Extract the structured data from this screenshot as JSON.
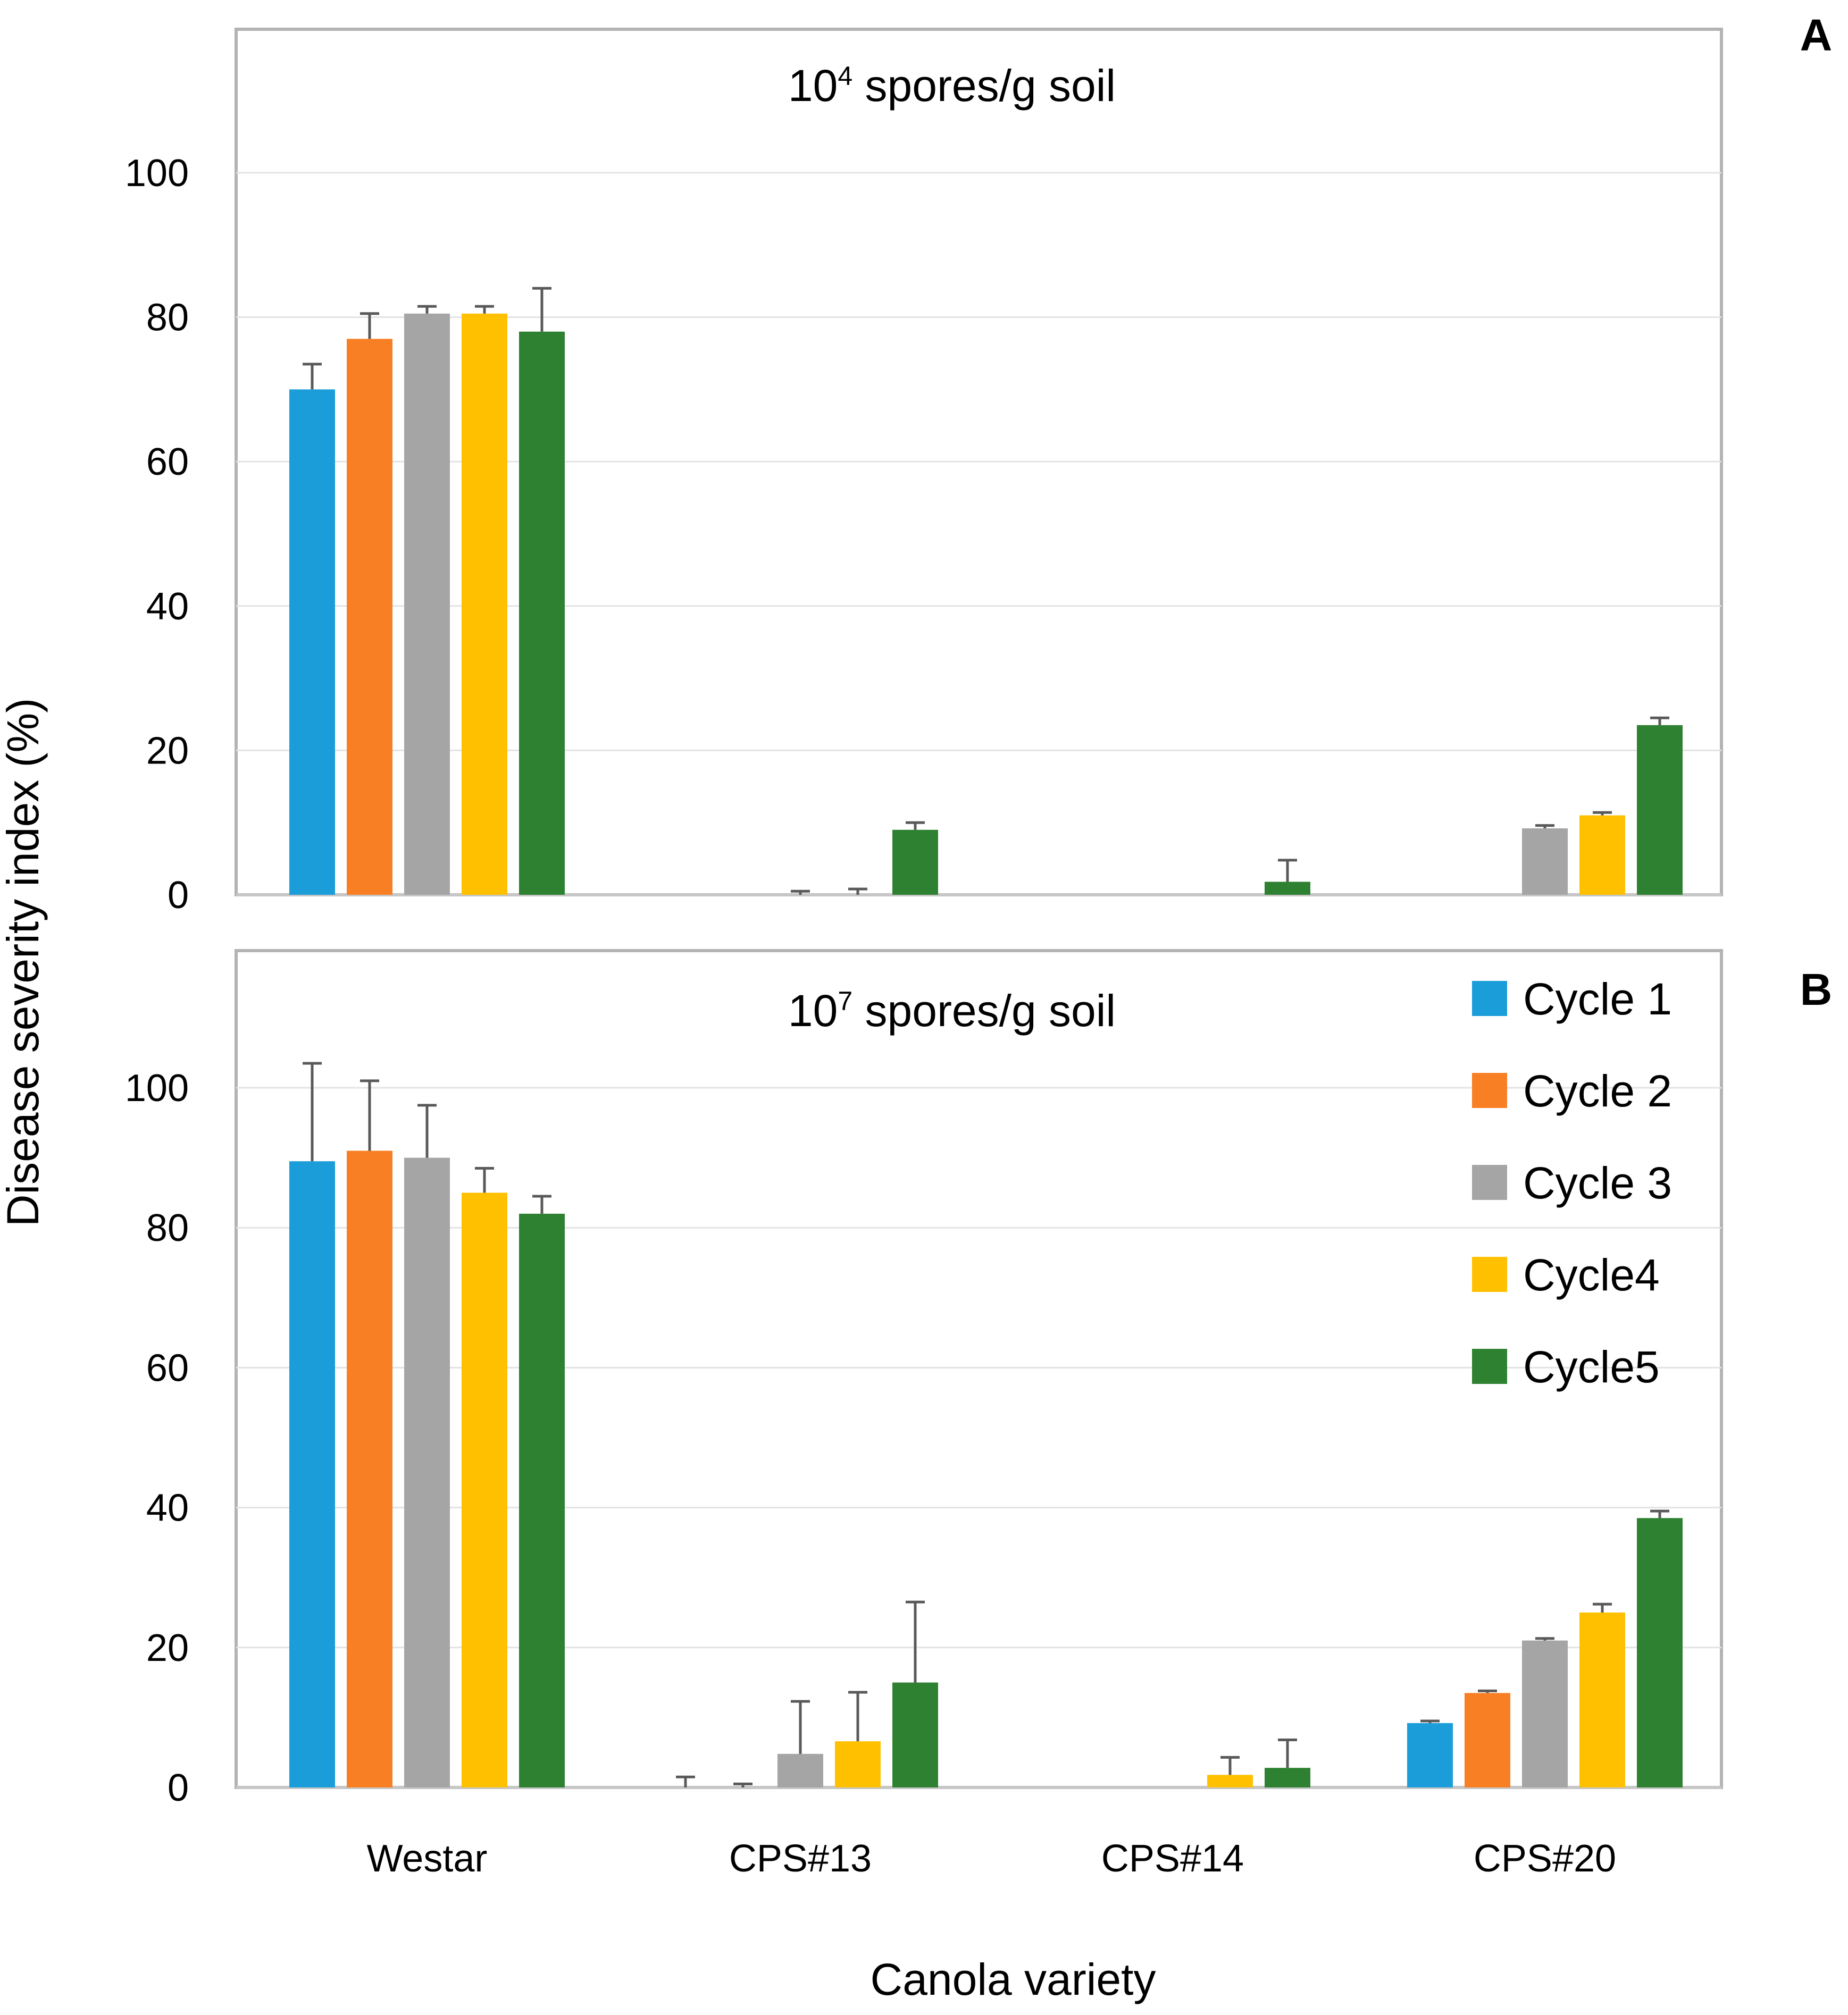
{
  "chart_data": [
    {
      "panel": "A",
      "type": "bar",
      "title_base": "10",
      "title_exp": "4",
      "title_rest": " spores/g soil",
      "categories": [
        "Westar",
        "CPS#13",
        "CPS#14",
        "CPS#20"
      ],
      "ylim": [
        0,
        115
      ],
      "yticks": [
        0,
        20,
        40,
        60,
        80,
        100
      ],
      "series": [
        {
          "name": "Cycle 1",
          "color": "#1b9dd9",
          "values": [
            70,
            0,
            0,
            0
          ],
          "errors": [
            3.5,
            0,
            0,
            0
          ]
        },
        {
          "name": "Cycle 2",
          "color": "#f97f25",
          "values": [
            77,
            0,
            0,
            0
          ],
          "errors": [
            3.5,
            0,
            0,
            0
          ]
        },
        {
          "name": "Cycle 3",
          "color": "#a5a5a5",
          "values": [
            80.5,
            0,
            0,
            9.2
          ],
          "errors": [
            1.0,
            0.5,
            0,
            0.4
          ]
        },
        {
          "name": "Cycle4",
          "color": "#ffc000",
          "values": [
            80.5,
            0,
            0,
            11
          ],
          "errors": [
            1.0,
            0.8,
            0,
            0.4
          ]
        },
        {
          "name": "Cycle5",
          "color": "#2e8130",
          "values": [
            78,
            9,
            1.8,
            23.5
          ],
          "errors": [
            6.0,
            1.0,
            3.0,
            1.0
          ]
        }
      ]
    },
    {
      "panel": "B",
      "type": "bar",
      "title_base": "10",
      "title_exp": "7",
      "title_rest": " spores/g soil",
      "categories": [
        "Westar",
        "CPS#13",
        "CPS#14",
        "CPS#20"
      ],
      "ylim": [
        0,
        115
      ],
      "yticks": [
        0,
        20,
        40,
        60,
        80,
        100
      ],
      "series": [
        {
          "name": "Cycle 1",
          "color": "#1b9dd9",
          "values": [
            89.5,
            0,
            0,
            9.2
          ],
          "errors": [
            14,
            1.5,
            0,
            0.3
          ]
        },
        {
          "name": "Cycle 2",
          "color": "#f97f25",
          "values": [
            91,
            0,
            0,
            13.5
          ],
          "errors": [
            10,
            0.5,
            0,
            0.3
          ]
        },
        {
          "name": "Cycle 3",
          "color": "#a5a5a5",
          "values": [
            90,
            4.8,
            0,
            21
          ],
          "errors": [
            7.5,
            7.5,
            0,
            0.3
          ]
        },
        {
          "name": "Cycle4",
          "color": "#ffc000",
          "values": [
            85,
            6.6,
            1.8,
            25
          ],
          "errors": [
            3.5,
            7.0,
            2.5,
            1.2
          ]
        },
        {
          "name": "Cycle5",
          "color": "#2e8130",
          "values": [
            82,
            15,
            2.8,
            38.5
          ],
          "errors": [
            2.5,
            11.5,
            4.0,
            1.0
          ]
        }
      ]
    }
  ],
  "ylabel": "Disease severity index (%)",
  "xlabel": "Canola variety",
  "legend": [
    {
      "name": "Cycle 1",
      "color": "#1b9dd9"
    },
    {
      "name": "Cycle 2",
      "color": "#f97f25"
    },
    {
      "name": "Cycle 3",
      "color": "#a5a5a5"
    },
    {
      "name": "Cycle4",
      "color": "#ffc000"
    },
    {
      "name": "Cycle5",
      "color": "#2e8130"
    }
  ]
}
